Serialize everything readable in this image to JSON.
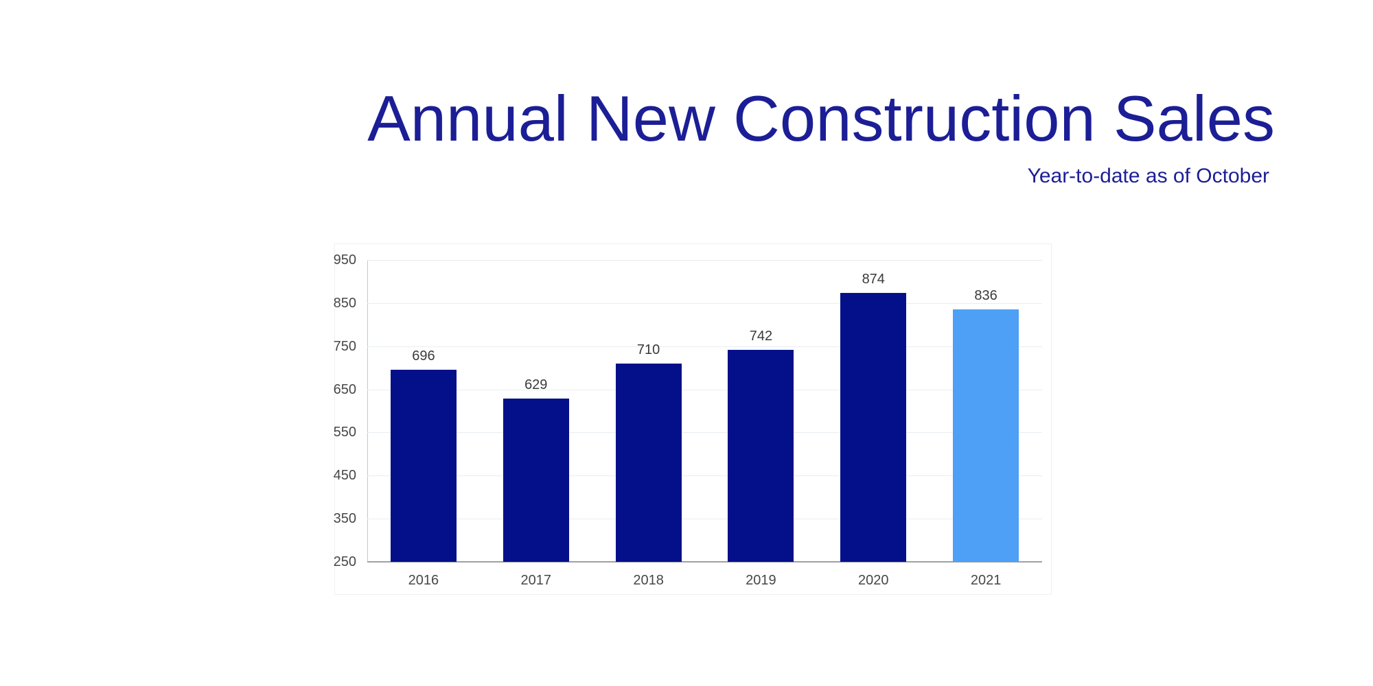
{
  "header": {
    "title": "Annual New Construction Sales",
    "subtitle": "Year-to-date as of October"
  },
  "chart_data": {
    "type": "bar",
    "title": "Annual New Construction Sales",
    "subtitle": "Year-to-date as of October",
    "categories": [
      "2016",
      "2017",
      "2018",
      "2019",
      "2020",
      "2021"
    ],
    "values": [
      696,
      629,
      710,
      742,
      874,
      836
    ],
    "value_labels_shown": true,
    "xlabel": "",
    "ylabel": "",
    "ylim": [
      250,
      950
    ],
    "ytick_step": 100,
    "yticks": [
      250,
      350,
      450,
      550,
      650,
      750,
      850,
      950
    ],
    "grid": true,
    "legend": "none",
    "highlight_index": 5,
    "colors": {
      "bar_default": "#031089",
      "bar_highlight": "#4da0f5",
      "title_text": "#1c1e96",
      "subtitle_text": "#1c1e96",
      "tick_text": "#474747",
      "value_text": "#3a3a3a",
      "gridline": "#e9edf1",
      "y_axis_line": "#c3c7cb",
      "x_axis_line": "#9da1a6",
      "background": "#ffffff"
    }
  }
}
